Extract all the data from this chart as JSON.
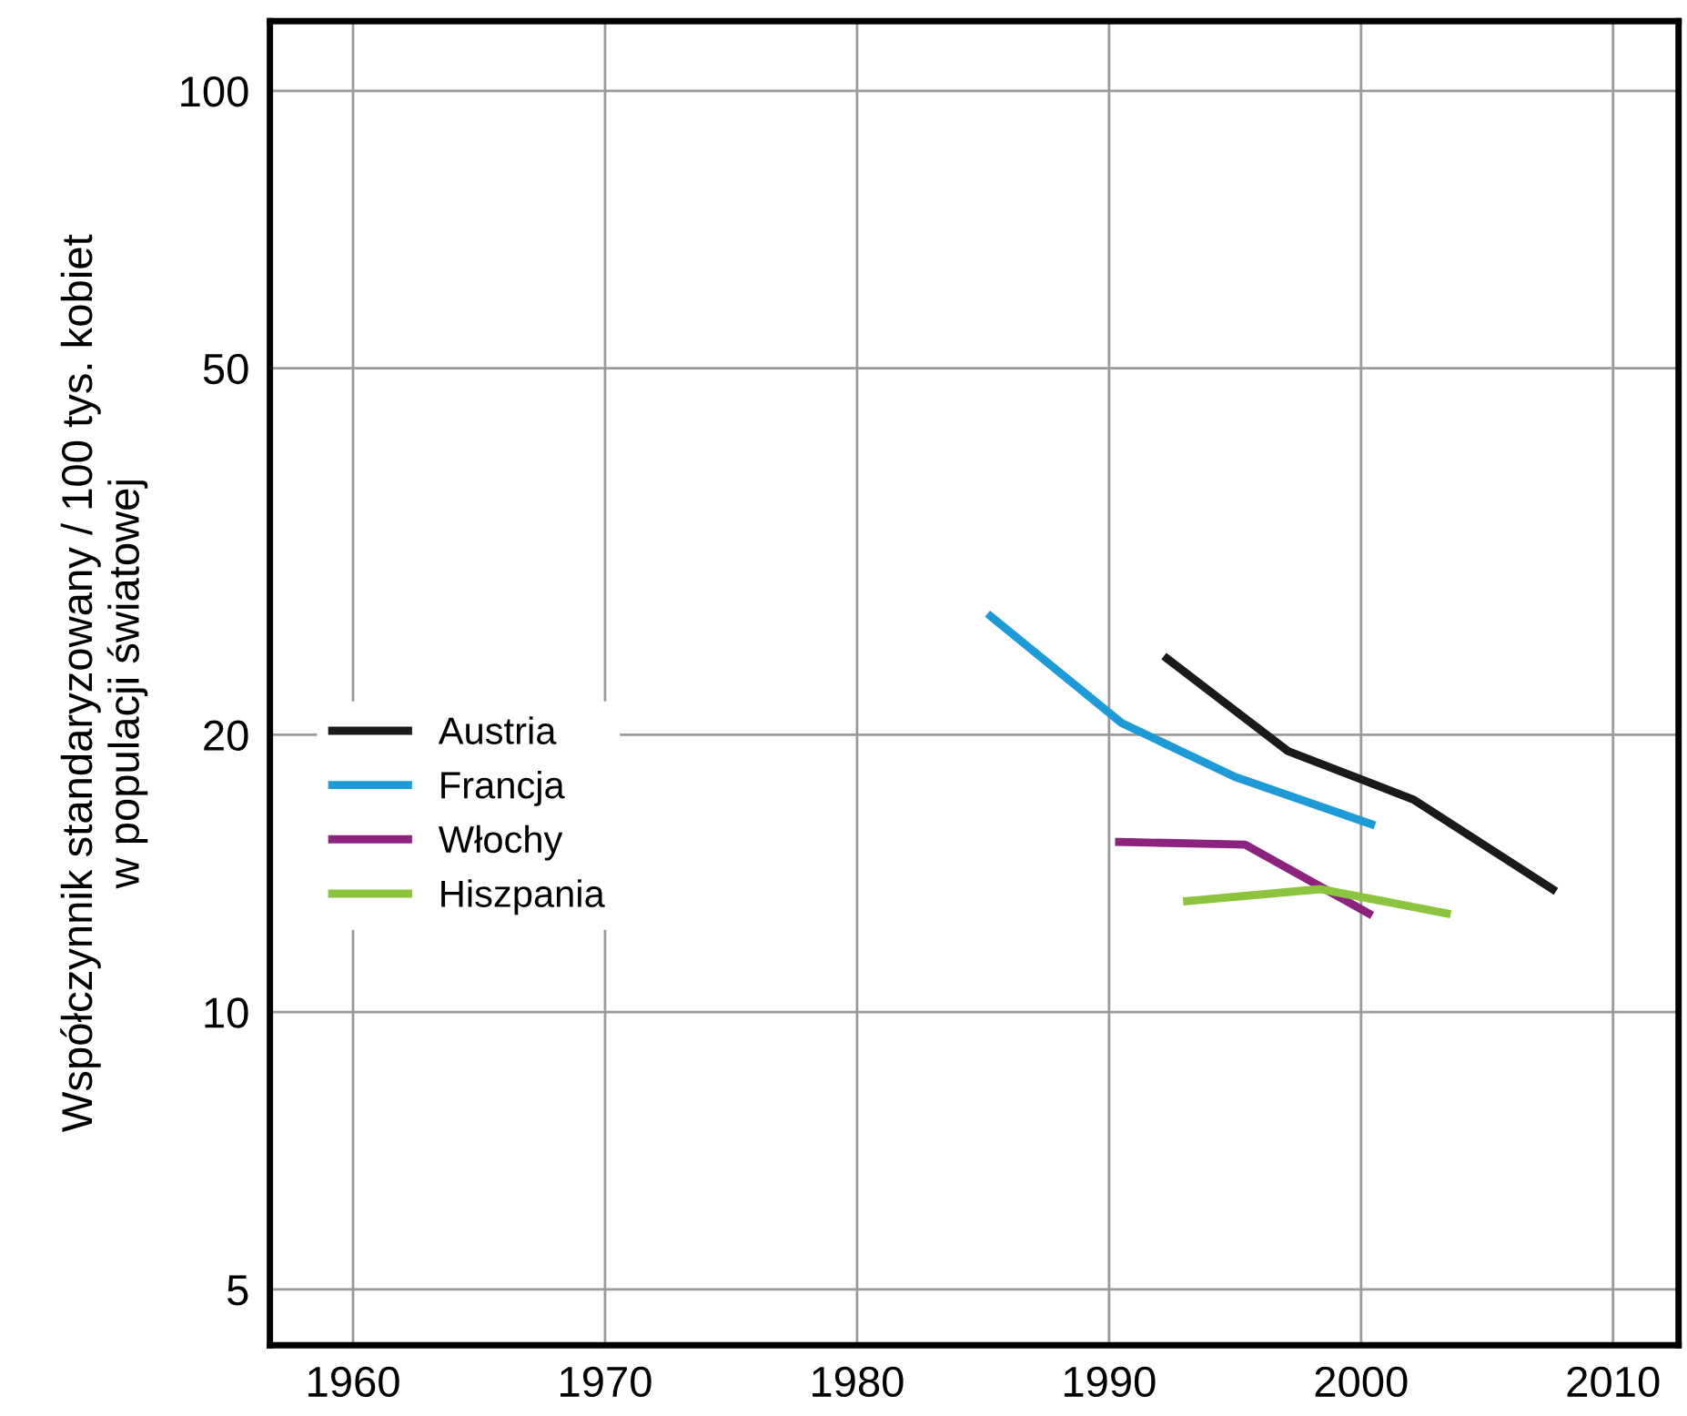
{
  "chart_data": {
    "type": "line",
    "ylabel": "Współczynnik standaryzowany / 100 tys. kobiet\nw populacji światowej",
    "log": "y",
    "xlim": [
      1956.7,
      2012.6
    ],
    "xticks": [
      1960,
      1970,
      1980,
      1990,
      2000,
      2010
    ],
    "ylim": [
      4.35,
      119
    ],
    "yticks": [
      5,
      10,
      20,
      50,
      100
    ],
    "grid": true,
    "legend": "left",
    "line_style": "solid",
    "marker": "none",
    "series": [
      {
        "name": "Austria",
        "color": "#1a1a1a",
        "x": [
          1992.3,
          1997.1,
          2002.1,
          2007.6
        ],
        "values": [
          24.2,
          19.2,
          17.0,
          13.6
        ]
      },
      {
        "name": "Francja",
        "color": "#1e9ad6",
        "x": [
          1985.3,
          1990.5,
          1995.0,
          2000.4
        ],
        "values": [
          26.9,
          20.6,
          18.0,
          16.0
        ]
      },
      {
        "name": "Włochy",
        "color": "#8b237f",
        "x": [
          1990.4,
          1995.4,
          2000.3
        ],
        "values": [
          15.3,
          15.2,
          12.8
        ]
      },
      {
        "name": "Hiszpania",
        "color": "#8cc43f",
        "x": [
          1993.1,
          1998.4,
          2003.4
        ],
        "values": [
          13.2,
          13.6,
          12.8
        ]
      }
    ]
  }
}
